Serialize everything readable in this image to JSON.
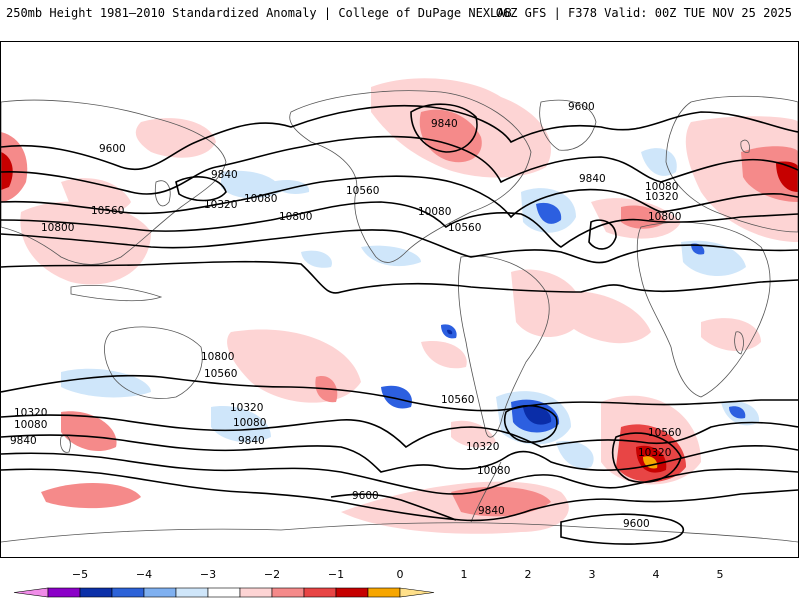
{
  "header": {
    "title": "250mb Height 1981–2010 Standardized Anomaly | College of DuPage NEXLAB",
    "run_info": "06Z GFS | F378 Valid: 00Z TUE NOV 25 2025"
  },
  "colors": {
    "pos1": "#fdd4d4",
    "pos2": "#f58a8a",
    "pos3": "#e84545",
    "pos4": "#c60000",
    "pos5": "#f7a600",
    "neg1": "#cfe6fa",
    "neg2": "#7fb0f0",
    "neg3": "#2c5fe0",
    "neg4": "#0a2da8",
    "contour": "#000000",
    "land": "#555555"
  },
  "contours": {
    "labels": [
      "9600",
      "9840",
      "10080",
      "10320",
      "10560",
      "10800",
      "9600",
      "9840",
      "10080",
      "10320",
      "10560",
      "10800",
      "9840",
      "10080",
      "10560",
      "10800",
      "10320",
      "10080",
      "10320",
      "10560",
      "10800",
      "10320",
      "10560",
      "10080",
      "9840",
      "9840",
      "9600",
      "9600",
      "10080",
      "10560",
      "10320",
      "9840"
    ]
  },
  "colorbar": {
    "tick_labels": [
      "−5",
      "−4",
      "−3",
      "−2",
      "−1",
      "0",
      "1",
      "2",
      "3",
      "4",
      "5"
    ],
    "segment_colors": [
      "#f08ce8",
      "#8b00c8",
      "#0b2fa8",
      "#2c62d8",
      "#7fb0f0",
      "#cfe6fa",
      "#ffffff",
      "#fdd4d4",
      "#f58a8a",
      "#e84545",
      "#c60000",
      "#f7a600",
      "#ffe08a"
    ]
  }
}
